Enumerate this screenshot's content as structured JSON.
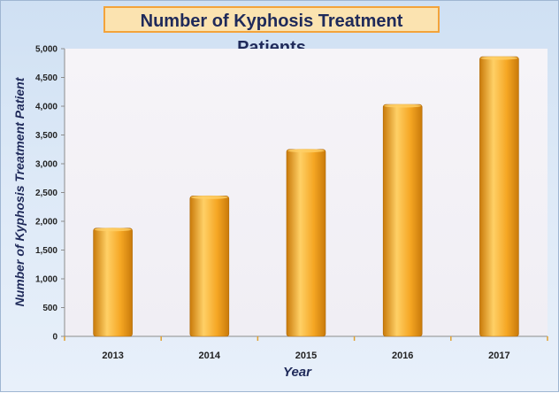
{
  "chart_data": {
    "type": "bar",
    "title": "Number of Kyphosis Treatment Patients",
    "xlabel": "Year",
    "ylabel": "Number of Kyphosis Treatment  Patient",
    "categories": [
      "2013",
      "2014",
      "2015",
      "2016",
      "2017"
    ],
    "values": [
      1880,
      2440,
      3250,
      4030,
      4860
    ],
    "ylim": [
      0,
      5000
    ],
    "yticks": [
      0,
      500,
      1000,
      1500,
      2000,
      2500,
      3000,
      3500,
      4000,
      4500,
      5000
    ],
    "ytick_labels": [
      "0",
      "500",
      "1,000",
      "1,500",
      "2,000",
      "2,500",
      "3,000",
      "3,500",
      "4,000",
      "4,500",
      "5,000"
    ],
    "grid": false,
    "legend": "none",
    "colors": {
      "bar": "#f5a623",
      "bar_highlight": "#ffd066",
      "bar_shadow": "#c97a0a",
      "plot_background": "#f0eef4",
      "title_border": "#f3a33a",
      "title_fill": "#fbe3b0",
      "text": "#1f2a5a"
    }
  }
}
